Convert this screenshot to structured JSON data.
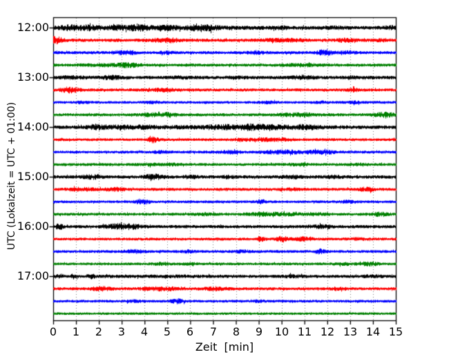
{
  "chart_data": {
    "type": "line",
    "subtype": "helicorder-seismogram",
    "title": "",
    "xlabel": "Zeit  [min]",
    "ylabel": "UTC (Lokalzeit = UTC + 01:00)",
    "xlim": [
      0,
      15
    ],
    "minutes_per_row": 15,
    "grid": "vertical-dotted-per-minute",
    "grid_color": "#777777",
    "axis_color": "#000000",
    "background_color": "#ffffff",
    "trace_colors_cycle": [
      "#000000",
      "#ff0000",
      "#0000ff",
      "#008000"
    ],
    "x_tick_labels": [
      "0",
      "1",
      "2",
      "3",
      "4",
      "5",
      "6",
      "7",
      "8",
      "9",
      "10",
      "11",
      "12",
      "13",
      "14",
      "15"
    ],
    "y_tick_labels": [
      "12:00",
      "13:00",
      "14:00",
      "15:00",
      "16:00",
      "17:00"
    ],
    "rows": [
      {
        "time": "12:00",
        "color": "#000000",
        "base": 1.9,
        "bursts": [
          [
            3.2,
            3.0,
            1.0
          ],
          [
            0.7,
            0.25,
            1.6
          ],
          [
            1.6,
            0.25,
            1.6
          ],
          [
            2.8,
            0.2,
            1.2
          ],
          [
            3.7,
            0.3,
            1.6
          ],
          [
            5.0,
            0.3,
            1.2
          ],
          [
            6.4,
            0.35,
            2.0
          ],
          [
            7.0,
            0.2,
            1.2
          ],
          [
            10.0,
            0.3,
            0.8
          ],
          [
            12.3,
            0.3,
            0.9
          ],
          [
            14.8,
            0.25,
            1.2
          ]
        ]
      },
      {
        "time": "12:15",
        "color": "#ff0000",
        "base": 1.7,
        "bursts": [
          [
            0.05,
            0.25,
            3.5
          ],
          [
            4.5,
            0.2,
            1.2
          ],
          [
            5.1,
            0.25,
            2.0
          ],
          [
            9.7,
            0.4,
            0.9
          ],
          [
            10.6,
            0.3,
            0.9
          ],
          [
            12.8,
            0.25,
            1.5
          ],
          [
            14.4,
            0.2,
            0.9
          ]
        ]
      },
      {
        "time": "12:30",
        "color": "#0000ff",
        "base": 1.5,
        "bursts": [
          [
            2.9,
            0.3,
            1.2
          ],
          [
            3.4,
            0.25,
            1.2
          ],
          [
            5.0,
            0.25,
            1.0
          ],
          [
            8.9,
            0.3,
            1.0
          ],
          [
            11.9,
            0.22,
            3.2
          ],
          [
            12.9,
            0.25,
            1.3
          ]
        ]
      },
      {
        "time": "12:45",
        "color": "#008000",
        "base": 1.5,
        "bursts": [
          [
            2.3,
            0.7,
            1.0
          ],
          [
            3.3,
            0.3,
            1.7
          ],
          [
            10.4,
            0.35,
            0.8
          ],
          [
            11.2,
            0.3,
            0.8
          ]
        ]
      },
      {
        "time": "13:00",
        "color": "#000000",
        "base": 1.7,
        "bursts": [
          [
            0.85,
            0.4,
            1.0
          ],
          [
            2.5,
            0.35,
            1.5
          ],
          [
            5.6,
            0.25,
            0.9
          ],
          [
            8.0,
            0.25,
            0.8
          ],
          [
            10.9,
            0.35,
            1.3
          ],
          [
            13.0,
            0.25,
            1.0
          ]
        ]
      },
      {
        "time": "13:15",
        "color": "#ff0000",
        "base": 1.5,
        "bursts": [
          [
            0.75,
            0.3,
            2.6
          ],
          [
            4.3,
            0.25,
            1.0
          ],
          [
            5.0,
            0.25,
            1.2
          ],
          [
            13.1,
            0.2,
            1.3
          ]
        ]
      },
      {
        "time": "13:30",
        "color": "#0000ff",
        "base": 1.3,
        "bursts": [
          [
            1.3,
            0.18,
            1.0
          ],
          [
            4.3,
            0.2,
            1.2
          ],
          [
            9.4,
            0.25,
            1.0
          ],
          [
            11.7,
            0.2,
            0.9
          ],
          [
            13.2,
            0.25,
            0.8
          ]
        ]
      },
      {
        "time": "13:45",
        "color": "#008000",
        "base": 1.5,
        "bursts": [
          [
            4.3,
            0.25,
            1.5
          ],
          [
            5.05,
            0.2,
            1.9
          ],
          [
            10.3,
            0.45,
            1.1
          ],
          [
            11.0,
            0.25,
            1.5
          ],
          [
            14.5,
            0.3,
            2.2
          ]
        ]
      },
      {
        "time": "14:00",
        "color": "#000000",
        "base": 1.8,
        "bursts": [
          [
            6.8,
            3.2,
            0.7
          ],
          [
            2.0,
            0.4,
            1.5
          ],
          [
            3.0,
            0.25,
            1.3
          ],
          [
            4.0,
            0.25,
            1.1
          ],
          [
            7.4,
            0.5,
            1.4
          ],
          [
            8.6,
            0.35,
            1.3
          ],
          [
            9.3,
            0.6,
            1.4
          ],
          [
            11.0,
            0.45,
            1.7
          ]
        ]
      },
      {
        "time": "14:15",
        "color": "#ff0000",
        "base": 1.4,
        "bursts": [
          [
            4.35,
            0.15,
            2.8
          ],
          [
            8.3,
            0.25,
            1.0
          ],
          [
            9.3,
            0.35,
            1.3
          ],
          [
            10.0,
            0.25,
            1.0
          ]
        ]
      },
      {
        "time": "14:30",
        "color": "#0000ff",
        "base": 1.4,
        "bursts": [
          [
            4.7,
            0.25,
            1.0
          ],
          [
            7.7,
            0.3,
            1.3
          ],
          [
            9.7,
            0.45,
            1.3
          ],
          [
            10.4,
            0.35,
            1.1
          ],
          [
            11.4,
            0.4,
            1.3
          ],
          [
            12.0,
            0.25,
            1.1
          ]
        ]
      },
      {
        "time": "14:45",
        "color": "#008000",
        "base": 1.4,
        "bursts": [
          [
            4.2,
            0.3,
            0.8
          ],
          [
            5.2,
            0.3,
            0.8
          ],
          [
            10.7,
            0.35,
            0.9
          ],
          [
            13.3,
            0.3,
            0.8
          ]
        ]
      },
      {
        "time": "15:00",
        "color": "#000000",
        "base": 1.7,
        "bursts": [
          [
            1.5,
            0.25,
            1.3
          ],
          [
            1.9,
            0.12,
            1.8
          ],
          [
            4.4,
            0.3,
            2.2
          ],
          [
            6.0,
            0.25,
            1.0
          ],
          [
            7.7,
            0.25,
            1.0
          ],
          [
            10.5,
            0.35,
            1.0
          ],
          [
            12.2,
            0.3,
            1.0
          ]
        ]
      },
      {
        "time": "15:15",
        "color": "#ff0000",
        "base": 1.5,
        "bursts": [
          [
            0.9,
            0.25,
            1.1
          ],
          [
            1.6,
            0.25,
            1.1
          ],
          [
            2.7,
            0.3,
            1.6
          ],
          [
            10.4,
            0.3,
            0.9
          ],
          [
            13.7,
            0.25,
            1.6
          ]
        ]
      },
      {
        "time": "15:30",
        "color": "#0000ff",
        "base": 1.3,
        "bursts": [
          [
            3.9,
            0.2,
            2.5
          ],
          [
            9.1,
            0.12,
            2.0
          ],
          [
            12.9,
            0.25,
            1.0
          ]
        ]
      },
      {
        "time": "15:45",
        "color": "#008000",
        "base": 1.4,
        "bursts": [
          [
            6.7,
            0.35,
            1.0
          ],
          [
            9.0,
            0.45,
            1.1
          ],
          [
            10.0,
            0.55,
            1.2
          ],
          [
            11.5,
            0.35,
            1.0
          ],
          [
            14.3,
            0.28,
            1.8
          ]
        ]
      },
      {
        "time": "16:00",
        "color": "#000000",
        "base": 1.6,
        "bursts": [
          [
            0.25,
            0.1,
            3.0
          ],
          [
            2.7,
            0.35,
            1.9
          ],
          [
            3.4,
            0.35,
            2.2
          ],
          [
            11.5,
            0.25,
            1.0
          ],
          [
            11.9,
            0.18,
            1.1
          ]
        ]
      },
      {
        "time": "16:15",
        "color": "#ff0000",
        "base": 1.4,
        "bursts": [
          [
            9.1,
            0.12,
            1.8
          ],
          [
            10.0,
            0.18,
            2.8
          ],
          [
            10.9,
            0.3,
            1.7
          ],
          [
            13.3,
            0.25,
            0.8
          ]
        ]
      },
      {
        "time": "16:30",
        "color": "#0000ff",
        "base": 1.4,
        "bursts": [
          [
            3.5,
            0.28,
            1.5
          ],
          [
            5.9,
            0.2,
            1.0
          ],
          [
            8.3,
            0.25,
            0.9
          ],
          [
            11.7,
            0.13,
            2.2
          ]
        ]
      },
      {
        "time": "16:45",
        "color": "#008000",
        "base": 1.3,
        "bursts": [
          [
            4.7,
            0.28,
            0.9
          ],
          [
            6.0,
            0.25,
            0.9
          ],
          [
            12.8,
            0.28,
            1.0
          ],
          [
            13.7,
            0.2,
            1.3
          ],
          [
            14.05,
            0.18,
            1.1
          ]
        ]
      },
      {
        "time": "17:00",
        "color": "#000000",
        "base": 1.5,
        "bursts": [
          [
            0.3,
            0.09,
            1.9
          ],
          [
            0.9,
            0.09,
            2.2
          ],
          [
            1.65,
            0.12,
            1.9
          ],
          [
            5.5,
            2.0,
            0.5
          ],
          [
            10.5,
            0.3,
            1.1
          ],
          [
            14.0,
            0.3,
            1.0
          ]
        ]
      },
      {
        "time": "17:15",
        "color": "#ff0000",
        "base": 1.5,
        "bursts": [
          [
            2.1,
            0.3,
            1.9
          ],
          [
            4.4,
            0.45,
            1.2
          ],
          [
            5.0,
            0.25,
            1.3
          ],
          [
            7.1,
            0.35,
            1.5
          ],
          [
            12.5,
            0.2,
            1.3
          ]
        ]
      },
      {
        "time": "17:30",
        "color": "#0000ff",
        "base": 1.3,
        "bursts": [
          [
            3.5,
            0.25,
            0.9
          ],
          [
            5.45,
            0.2,
            2.2
          ],
          [
            9.0,
            0.18,
            0.8
          ]
        ]
      },
      {
        "time": "17:45",
        "color": "#008000",
        "base": 1.2,
        "bursts": []
      }
    ]
  }
}
